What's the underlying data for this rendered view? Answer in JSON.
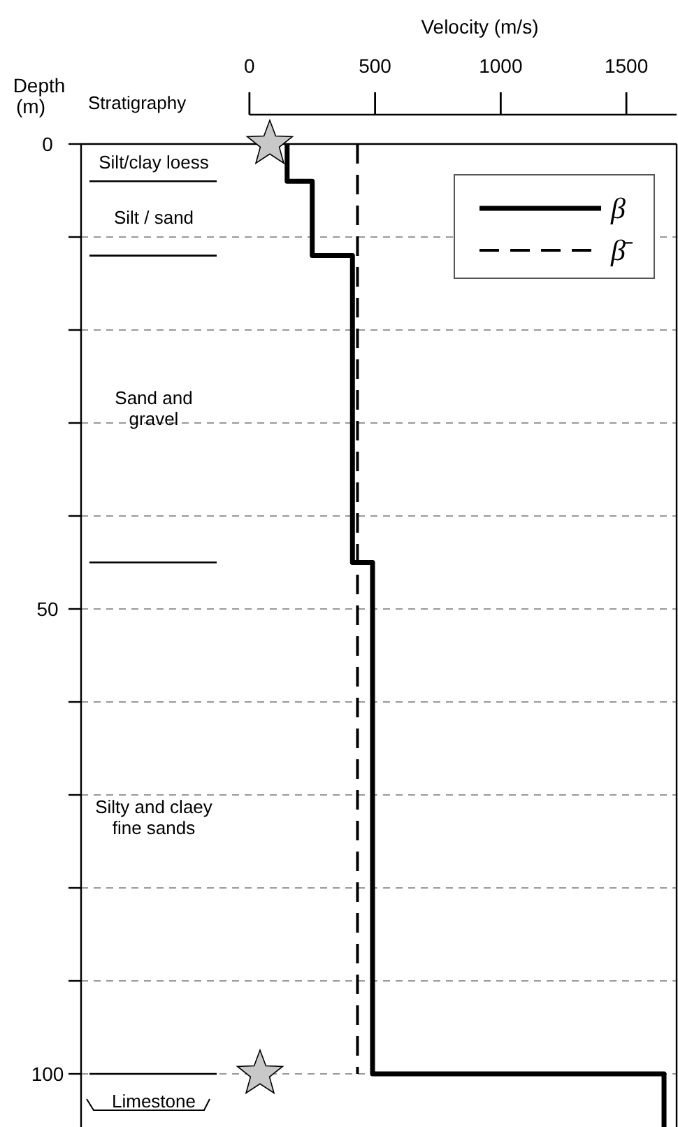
{
  "chart_data": {
    "type": "line",
    "xlabel": "Velocity (m/s)",
    "ylabel": "Depth (m)",
    "xlim": [
      -670,
      1700
    ],
    "ylim": [
      106,
      0
    ],
    "xticks": [
      0,
      500,
      1000,
      1500
    ],
    "yticks": [
      0,
      {
        "value": 10,
        "label": null
      },
      {
        "value": 20,
        "label": null
      },
      {
        "value": 30,
        "label": null
      },
      {
        "value": 40,
        "label": null
      },
      50,
      {
        "value": 60,
        "label": null
      },
      {
        "value": 70,
        "label": null
      },
      {
        "value": 80,
        "label": null
      },
      {
        "value": 90,
        "label": null
      },
      100
    ],
    "grid": "y",
    "legend": "top right",
    "marker": "none",
    "series": [
      {
        "name": "β",
        "color": "#000000",
        "line_style": "solid",
        "x": [
          150,
          150,
          250,
          250,
          410,
          410,
          490,
          490,
          1650,
          1650
        ],
        "values": [
          0,
          4,
          4,
          12,
          12,
          45,
          45,
          100,
          100,
          106
        ]
      },
      {
        "name": "β̄",
        "color": "#000000",
        "line_style": "dashed",
        "x": [
          430,
          430
        ],
        "values": [
          0,
          100
        ]
      }
    ],
    "annotations": [
      "Stratigraphy",
      "Silt/clay loess",
      "Silt / sand",
      "Sand and\ngravel",
      "Silty and claey\nfine sands",
      "Limestone"
    ]
  }
}
